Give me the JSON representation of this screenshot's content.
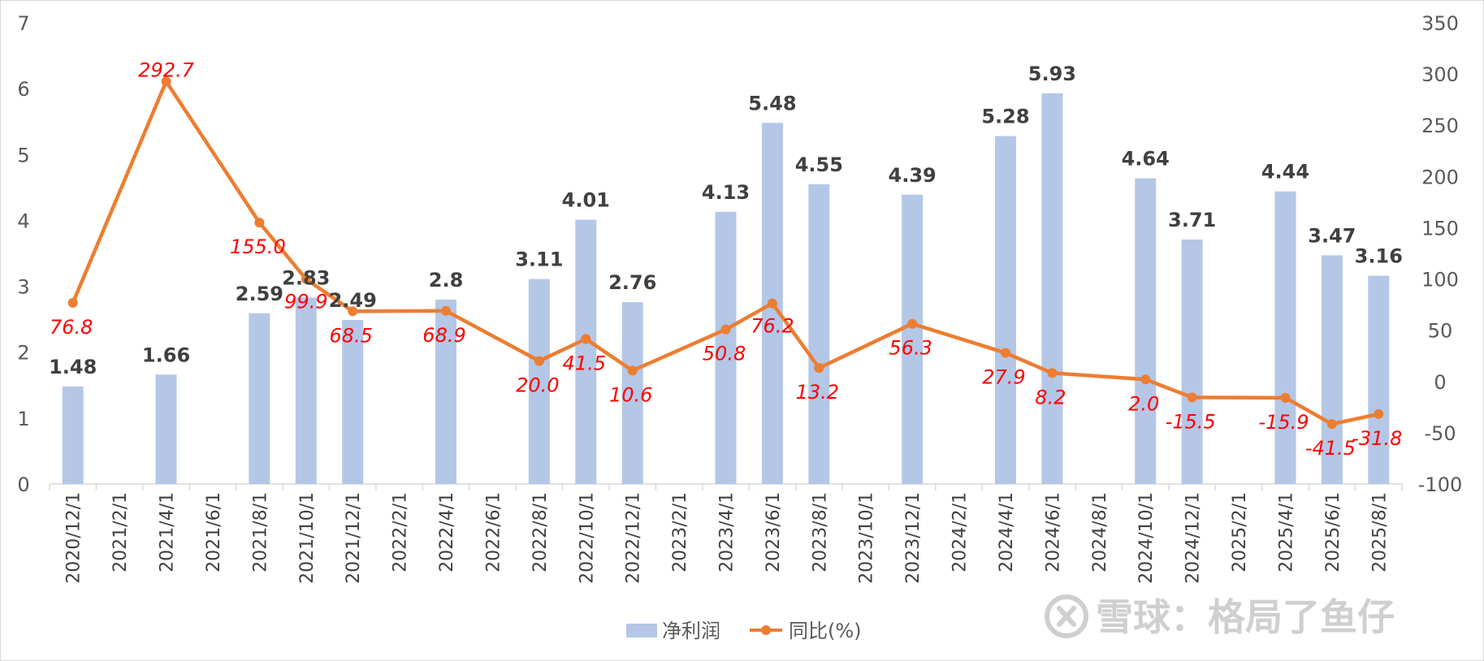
{
  "chart_data": {
    "type": "bar+line",
    "x": [
      "2020/12/1",
      "2021/2/1",
      "2021/4/1",
      "2021/6/1",
      "2021/8/1",
      "2021/10/1",
      "2021/12/1",
      "2022/2/1",
      "2022/4/1",
      "2022/6/1",
      "2022/8/1",
      "2022/10/1",
      "2022/12/1",
      "2023/2/1",
      "2023/4/1",
      "2023/6/1",
      "2023/8/1",
      "2023/10/1",
      "2023/12/1",
      "2024/2/1",
      "2024/4/1",
      "2024/6/1",
      "2024/8/1",
      "2024/10/1",
      "2024/12/1",
      "2025/2/1",
      "2025/4/1",
      "2025/6/1",
      "2025/8/1"
    ],
    "series": [
      {
        "name": "净利润",
        "type": "bar",
        "axis": "left",
        "color": "#b4c7e7",
        "points": [
          {
            "x": "2020/12/1",
            "y": 1.48,
            "label": "1.48"
          },
          {
            "x": "2021/4/1",
            "y": 1.66,
            "label": "1.66"
          },
          {
            "x": "2021/8/1",
            "y": 2.59,
            "label": "2.59"
          },
          {
            "x": "2021/10/1",
            "y": 2.83,
            "label": "2.83"
          },
          {
            "x": "2021/12/1",
            "y": 2.49,
            "label": "2.49"
          },
          {
            "x": "2022/4/1",
            "y": 2.8,
            "label": "2.8"
          },
          {
            "x": "2022/8/1",
            "y": 3.11,
            "label": "3.11"
          },
          {
            "x": "2022/10/1",
            "y": 4.01,
            "label": "4.01"
          },
          {
            "x": "2022/12/1",
            "y": 2.76,
            "label": "2.76"
          },
          {
            "x": "2023/4/1",
            "y": 4.13,
            "label": "4.13"
          },
          {
            "x": "2023/6/1",
            "y": 5.48,
            "label": "5.48"
          },
          {
            "x": "2023/8/1",
            "y": 4.55,
            "label": "4.55"
          },
          {
            "x": "2023/12/1",
            "y": 4.39,
            "label": "4.39"
          },
          {
            "x": "2024/4/1",
            "y": 5.28,
            "label": "5.28"
          },
          {
            "x": "2024/6/1",
            "y": 5.93,
            "label": "5.93"
          },
          {
            "x": "2024/10/1",
            "y": 4.64,
            "label": "4.64"
          },
          {
            "x": "2024/12/1",
            "y": 3.71,
            "label": "3.71"
          },
          {
            "x": "2025/4/1",
            "y": 4.44,
            "label": "4.44"
          },
          {
            "x": "2025/6/1",
            "y": 3.47,
            "label": "3.47"
          },
          {
            "x": "2025/8/1",
            "y": 3.16,
            "label": "3.16"
          }
        ]
      },
      {
        "name": "同比(%)",
        "type": "line",
        "axis": "right",
        "color": "#ed7d31",
        "label_color": "#ff0000",
        "points": [
          {
            "x": "2020/12/1",
            "y": 76.8,
            "label": "76.8"
          },
          {
            "x": "2021/4/1",
            "y": 292.7,
            "label": "292.7"
          },
          {
            "x": "2021/8/1",
            "y": 155.0,
            "label": "155.0"
          },
          {
            "x": "2021/10/1",
            "y": 99.9,
            "label": "99.9"
          },
          {
            "x": "2021/12/1",
            "y": 68.5,
            "label": "68.5"
          },
          {
            "x": "2022/4/1",
            "y": 68.9,
            "label": "68.9"
          },
          {
            "x": "2022/8/1",
            "y": 20.0,
            "label": "20.0"
          },
          {
            "x": "2022/10/1",
            "y": 41.5,
            "label": "41.5"
          },
          {
            "x": "2022/12/1",
            "y": 10.6,
            "label": "10.6"
          },
          {
            "x": "2023/4/1",
            "y": 50.8,
            "label": "50.8"
          },
          {
            "x": "2023/6/1",
            "y": 76.2,
            "label": "76.2"
          },
          {
            "x": "2023/8/1",
            "y": 13.2,
            "label": "13.2"
          },
          {
            "x": "2023/12/1",
            "y": 56.3,
            "label": "56.3"
          },
          {
            "x": "2024/4/1",
            "y": 27.9,
            "label": "27.9"
          },
          {
            "x": "2024/6/1",
            "y": 8.2,
            "label": "8.2"
          },
          {
            "x": "2024/10/1",
            "y": 2.0,
            "label": "2.0"
          },
          {
            "x": "2024/12/1",
            "y": -15.5,
            "label": "-15.5"
          },
          {
            "x": "2025/4/1",
            "y": -15.9,
            "label": "-15.9"
          },
          {
            "x": "2025/6/1",
            "y": -41.5,
            "label": "-41.5"
          },
          {
            "x": "2025/8/1",
            "y": -31.8,
            "label": "-31.8"
          }
        ]
      }
    ],
    "y_left": {
      "range": [
        0,
        7
      ],
      "ticks": [
        "0",
        "1",
        "2",
        "3",
        "4",
        "5",
        "6",
        "7"
      ]
    },
    "y_right": {
      "range": [
        -100,
        350
      ],
      "ticks": [
        "-100",
        "-50",
        "0",
        "50",
        "100",
        "150",
        "200",
        "250",
        "300",
        "350"
      ]
    },
    "legend": {
      "placement": "bottom",
      "items": [
        "净利润",
        "同比(%)"
      ]
    },
    "grid": false
  },
  "watermark": {
    "text": "雪球：格局了鱼仔"
  }
}
